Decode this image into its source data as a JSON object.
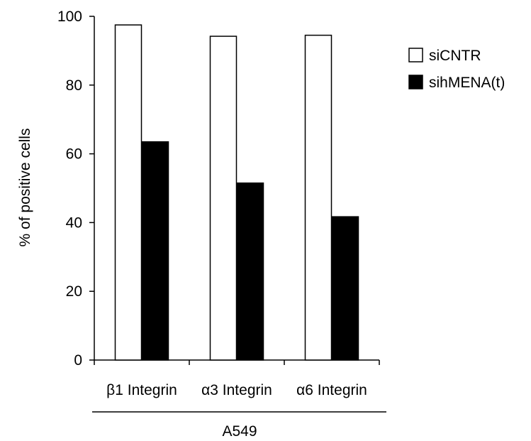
{
  "chart_data": {
    "type": "bar",
    "categories": [
      "β1 Integrin",
      "α3 Integrin",
      "α6 Integrin"
    ],
    "series": [
      {
        "name": "siCNTR",
        "values": [
          97.5,
          94.2,
          94.5
        ],
        "color": "#ffffff"
      },
      {
        "name": "sihMENA(t)",
        "values": [
          63.5,
          51.5,
          41.7
        ],
        "color": "#000000"
      }
    ],
    "title": "",
    "xlabel": "",
    "ylabel": "% of positive cells",
    "ylim": [
      0,
      100
    ],
    "yticks": [
      0,
      20,
      40,
      60,
      80,
      100
    ],
    "group_label": "A549",
    "grid": false,
    "legend_position": "top-right"
  }
}
